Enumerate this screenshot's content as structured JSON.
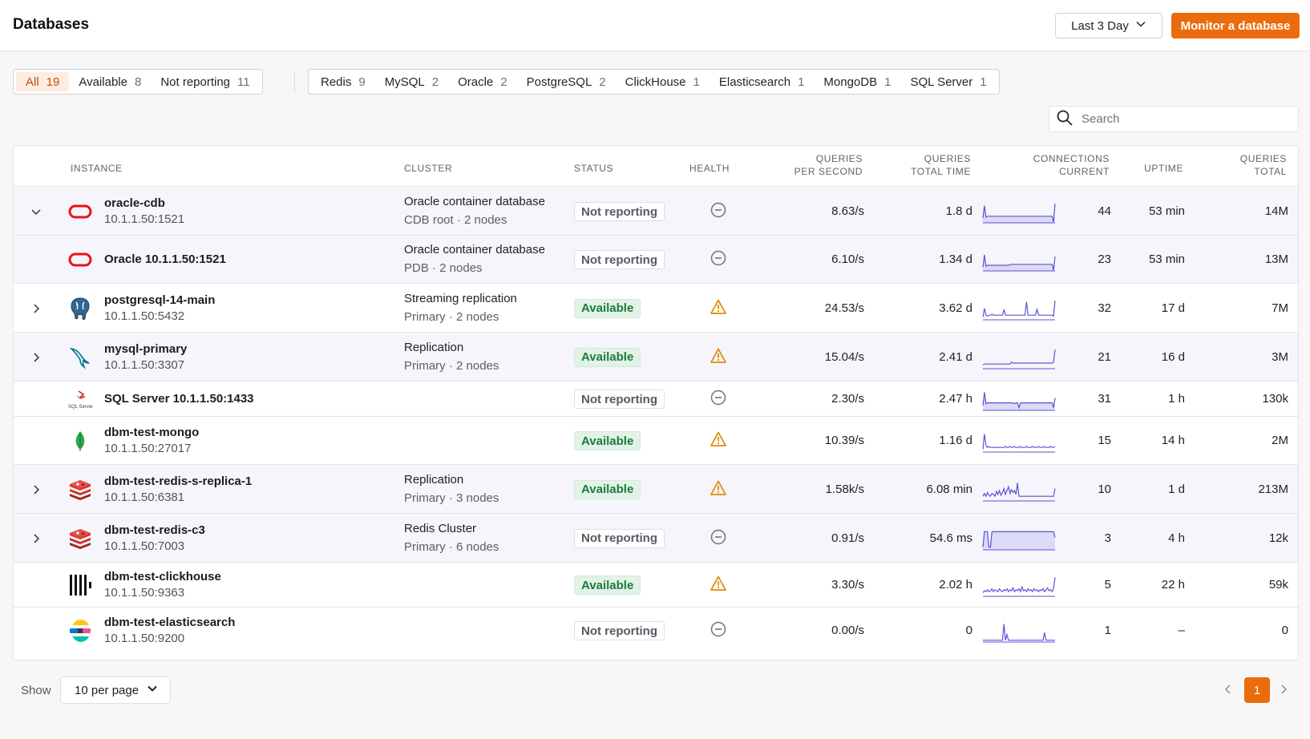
{
  "header": {
    "title": "Databases",
    "range_label": "Last 3 Day",
    "monitor_button": "Monitor a database"
  },
  "status_filters": [
    {
      "label": "All",
      "count": "19",
      "active": true
    },
    {
      "label": "Available",
      "count": "8",
      "active": false
    },
    {
      "label": "Not reporting",
      "count": "11",
      "active": false
    }
  ],
  "type_filters": [
    {
      "label": "Redis",
      "count": "9"
    },
    {
      "label": "MySQL",
      "count": "2"
    },
    {
      "label": "Oracle",
      "count": "2"
    },
    {
      "label": "PostgreSQL",
      "count": "2"
    },
    {
      "label": "ClickHouse",
      "count": "1"
    },
    {
      "label": "Elasticsearch",
      "count": "1"
    },
    {
      "label": "MongoDB",
      "count": "1"
    },
    {
      "label": "SQL Server",
      "count": "1"
    }
  ],
  "search": {
    "placeholder": "Search"
  },
  "columns": {
    "instance": "INSTANCE",
    "cluster": "CLUSTER",
    "status": "STATUS",
    "health": "HEALTH",
    "qps_1": "QUERIES",
    "qps_2": "PER SECOND",
    "qtt_1": "QUERIES",
    "qtt_2": "TOTAL TIME",
    "conn_1": "CONNECTIONS",
    "conn_2": "CURRENT",
    "uptime": "UPTIME",
    "qt_1": "QUERIES",
    "qt_2": "TOTAL"
  },
  "rows": [
    {
      "expand": "down",
      "logo": "oracle-logo",
      "name": "oracle-cdb",
      "address": "10.1.1.50:1521",
      "cluster": "Oracle container database",
      "cluster_sub": "CDB root · 2 nodes",
      "status": "Not reporting",
      "health": "no-data-icon",
      "qps": "8.63/s",
      "total_time": "1.8 d",
      "connections": "44",
      "uptime": "53 min",
      "queries_total": "14M",
      "spark": [
        0.2,
        0.85,
        0.25,
        0.3,
        0.3,
        0.3,
        0.3,
        0.3,
        0.3,
        0.3,
        0.3,
        0.3,
        0.3,
        0.3,
        0.3,
        0.3,
        0.3,
        0.3,
        0.3,
        0.3,
        0.3,
        0.3,
        0.3,
        0.3,
        0.3,
        0.3,
        0.3,
        0.3,
        0.3,
        0.3,
        0.3,
        0.3,
        0.3,
        0.3,
        0.3,
        0.3,
        0.3,
        0.3,
        0.3,
        0.3,
        0.3,
        0.3,
        0.3,
        0.3,
        0.3,
        0.3,
        0.3,
        0.0,
        0.95
      ],
      "spark_fill": true
    },
    {
      "expand": "",
      "logo": "oracle-logo",
      "name": "Oracle 10.1.1.50:1521",
      "address": "",
      "cluster": "Oracle container database",
      "cluster_sub": "PDB · 2 nodes",
      "status": "Not reporting",
      "health": "no-data-icon",
      "qps": "6.10/s",
      "total_time": "1.34 d",
      "connections": "23",
      "uptime": "53 min",
      "queries_total": "13M",
      "spark": [
        0.15,
        0.8,
        0.2,
        0.25,
        0.25,
        0.25,
        0.25,
        0.25,
        0.25,
        0.25,
        0.25,
        0.25,
        0.25,
        0.25,
        0.25,
        0.25,
        0.25,
        0.25,
        0.3,
        0.3,
        0.3,
        0.3,
        0.3,
        0.3,
        0.3,
        0.3,
        0.3,
        0.3,
        0.3,
        0.3,
        0.3,
        0.3,
        0.3,
        0.3,
        0.3,
        0.3,
        0.3,
        0.3,
        0.3,
        0.3,
        0.3,
        0.3,
        0.3,
        0.3,
        0.3,
        0.3,
        0.3,
        0.0,
        0.7
      ],
      "spark_fill": true
    },
    {
      "expand": "right",
      "logo": "postgresql-logo",
      "name": "postgresql-14-main",
      "address": "10.1.1.50:5432",
      "cluster": "Streaming replication",
      "cluster_sub": "Primary · 2 nodes",
      "status": "Available",
      "health": "warning-icon",
      "qps": "24.53/s",
      "total_time": "3.62 d",
      "connections": "32",
      "uptime": "17 d",
      "queries_total": "7M",
      "spark": [
        0.1,
        0.55,
        0.2,
        0.15,
        0.2,
        0.2,
        0.25,
        0.2,
        0.2,
        0.2,
        0.2,
        0.2,
        0.2,
        0.2,
        0.5,
        0.2,
        0.2,
        0.2,
        0.2,
        0.2,
        0.2,
        0.2,
        0.2,
        0.2,
        0.2,
        0.2,
        0.2,
        0.2,
        0.2,
        0.9,
        0.2,
        0.2,
        0.2,
        0.2,
        0.2,
        0.2,
        0.5,
        0.2,
        0.2,
        0.2,
        0.2,
        0.2,
        0.2,
        0.2,
        0.2,
        0.2,
        0.2,
        0.15,
        0.95
      ],
      "spark_fill": false
    },
    {
      "expand": "right",
      "logo": "mysql-logo",
      "name": "mysql-primary",
      "address": "10.1.1.50:3307",
      "cluster": "Replication",
      "cluster_sub": "Primary · 2 nodes",
      "status": "Available",
      "health": "warning-icon",
      "qps": "15.04/s",
      "total_time": "2.41 d",
      "connections": "21",
      "uptime": "16 d",
      "queries_total": "3M",
      "spark": [
        0.15,
        0.2,
        0.2,
        0.2,
        0.2,
        0.2,
        0.2,
        0.2,
        0.2,
        0.2,
        0.2,
        0.2,
        0.2,
        0.2,
        0.2,
        0.2,
        0.2,
        0.2,
        0.2,
        0.3,
        0.25,
        0.25,
        0.25,
        0.25,
        0.25,
        0.25,
        0.25,
        0.25,
        0.25,
        0.25,
        0.25,
        0.25,
        0.25,
        0.25,
        0.25,
        0.25,
        0.25,
        0.25,
        0.25,
        0.25,
        0.25,
        0.25,
        0.25,
        0.25,
        0.25,
        0.25,
        0.25,
        0.3,
        0.95
      ],
      "spark_fill": false
    },
    {
      "expand": "",
      "logo": "sqlserver-logo",
      "name": "SQL Server 10.1.1.50:1433",
      "address": "",
      "cluster": "",
      "cluster_sub": "",
      "status": "Not reporting",
      "health": "no-data-icon",
      "qps": "2.30/s",
      "total_time": "2.47 h",
      "connections": "31",
      "uptime": "1 h",
      "queries_total": "130k",
      "spark": [
        0.2,
        0.9,
        0.3,
        0.35,
        0.35,
        0.35,
        0.35,
        0.35,
        0.35,
        0.35,
        0.35,
        0.35,
        0.35,
        0.35,
        0.35,
        0.35,
        0.35,
        0.35,
        0.35,
        0.35,
        0.35,
        0.3,
        0.35,
        0.35,
        0.1,
        0.35,
        0.35,
        0.35,
        0.35,
        0.35,
        0.35,
        0.35,
        0.35,
        0.35,
        0.35,
        0.35,
        0.35,
        0.35,
        0.35,
        0.35,
        0.35,
        0.35,
        0.35,
        0.35,
        0.35,
        0.35,
        0.35,
        0.1,
        0.6
      ],
      "spark_fill": true
    },
    {
      "expand": "",
      "logo": "mongodb-logo",
      "name": "dbm-test-mongo",
      "address": "10.1.1.50:27017",
      "cluster": "",
      "cluster_sub": "",
      "status": "Available",
      "health": "warning-icon",
      "qps": "10.39/s",
      "total_time": "1.16 d",
      "connections": "15",
      "uptime": "14 h",
      "queries_total": "2M",
      "spark": [
        0.1,
        0.9,
        0.3,
        0.2,
        0.25,
        0.2,
        0.2,
        0.2,
        0.2,
        0.2,
        0.2,
        0.2,
        0.2,
        0.2,
        0.2,
        0.25,
        0.2,
        0.2,
        0.25,
        0.2,
        0.2,
        0.25,
        0.2,
        0.2,
        0.2,
        0.25,
        0.2,
        0.2,
        0.2,
        0.25,
        0.2,
        0.2,
        0.2,
        0.25,
        0.2,
        0.2,
        0.2,
        0.25,
        0.2,
        0.2,
        0.2,
        0.25,
        0.2,
        0.2,
        0.2,
        0.25,
        0.2,
        0.2,
        0.25
      ],
      "spark_fill": false
    },
    {
      "expand": "right",
      "logo": "redis-logo",
      "name": "dbm-test-redis-s-replica-1",
      "address": "10.1.1.50:6381",
      "cluster": "Replication",
      "cluster_sub": "Primary · 3 nodes",
      "status": "Available",
      "health": "warning-icon",
      "qps": "1.58k/s",
      "total_time": "6.08 min",
      "connections": "10",
      "uptime": "1 d",
      "queries_total": "213M",
      "spark": [
        0.2,
        0.35,
        0.2,
        0.4,
        0.25,
        0.2,
        0.35,
        0.3,
        0.2,
        0.45,
        0.3,
        0.5,
        0.25,
        0.4,
        0.6,
        0.3,
        0.5,
        0.7,
        0.35,
        0.55,
        0.4,
        0.5,
        0.3,
        0.9,
        0.2,
        0.2,
        0.2,
        0.2,
        0.2,
        0.2,
        0.2,
        0.2,
        0.2,
        0.2,
        0.2,
        0.2,
        0.2,
        0.2,
        0.2,
        0.2,
        0.2,
        0.2,
        0.2,
        0.2,
        0.2,
        0.2,
        0.2,
        0.2,
        0.6
      ],
      "spark_fill": false
    },
    {
      "expand": "right",
      "logo": "redis-logo",
      "name": "dbm-test-redis-c3",
      "address": "10.1.1.50:7003",
      "cluster": "Redis Cluster",
      "cluster_sub": "Primary · 6 nodes",
      "status": "Not reporting",
      "health": "no-data-icon",
      "qps": "0.91/s",
      "total_time": "54.6 ms",
      "connections": "3",
      "uptime": "4 h",
      "queries_total": "12k",
      "spark": [
        0.1,
        0.9,
        0.9,
        0.9,
        0.1,
        0.1,
        0.9,
        0.9,
        0.9,
        0.9,
        0.9,
        0.9,
        0.9,
        0.9,
        0.9,
        0.9,
        0.9,
        0.9,
        0.9,
        0.9,
        0.9,
        0.9,
        0.9,
        0.9,
        0.9,
        0.9,
        0.9,
        0.9,
        0.9,
        0.9,
        0.9,
        0.9,
        0.9,
        0.9,
        0.9,
        0.9,
        0.9,
        0.9,
        0.9,
        0.9,
        0.9,
        0.9,
        0.9,
        0.9,
        0.9,
        0.9,
        0.9,
        0.9,
        0.6
      ],
      "spark_fill": true
    },
    {
      "expand": "",
      "logo": "clickhouse-logo",
      "name": "dbm-test-clickhouse",
      "address": "10.1.1.50:9363",
      "cluster": "",
      "cluster_sub": "",
      "status": "Available",
      "health": "warning-icon",
      "qps": "3.30/s",
      "total_time": "2.02 h",
      "connections": "5",
      "uptime": "22 h",
      "queries_total": "59k",
      "spark": [
        0.15,
        0.25,
        0.2,
        0.3,
        0.2,
        0.25,
        0.35,
        0.2,
        0.3,
        0.25,
        0.2,
        0.35,
        0.25,
        0.2,
        0.3,
        0.25,
        0.35,
        0.2,
        0.3,
        0.25,
        0.4,
        0.2,
        0.3,
        0.25,
        0.35,
        0.2,
        0.45,
        0.25,
        0.3,
        0.2,
        0.35,
        0.25,
        0.3,
        0.2,
        0.35,
        0.25,
        0.3,
        0.2,
        0.3,
        0.25,
        0.35,
        0.2,
        0.3,
        0.4,
        0.25,
        0.3,
        0.2,
        0.35,
        0.95
      ],
      "spark_fill": false
    },
    {
      "expand": "",
      "logo": "elasticsearch-logo",
      "name": "dbm-test-elasticsearch",
      "address": "10.1.1.50:9200",
      "cluster": "",
      "cluster_sub": "",
      "status": "Not reporting",
      "health": "no-data-icon",
      "qps": "0.00/s",
      "total_time": "0",
      "connections": "1",
      "uptime": "–",
      "queries_total": "0",
      "spark": [
        0.05,
        0.05,
        0.05,
        0.05,
        0.05,
        0.05,
        0.05,
        0.05,
        0.05,
        0.05,
        0.05,
        0.05,
        0.05,
        0.05,
        0.9,
        0.05,
        0.35,
        0.05,
        0.05,
        0.05,
        0.05,
        0.05,
        0.05,
        0.05,
        0.05,
        0.05,
        0.05,
        0.05,
        0.05,
        0.05,
        0.05,
        0.05,
        0.05,
        0.05,
        0.05,
        0.05,
        0.05,
        0.05,
        0.05,
        0.05,
        0.05,
        0.45,
        0.05,
        0.05,
        0.05,
        0.05,
        0.05,
        0.05,
        0.05
      ],
      "spark_fill": false
    }
  ],
  "pagination": {
    "show_label": "Show",
    "per_page": "10 per page",
    "current_page": "1"
  },
  "colors": {
    "accent": "#ea6c0c",
    "available": "#1e7a3d",
    "warning": "#e08a00",
    "spark": "#5b53d6"
  }
}
